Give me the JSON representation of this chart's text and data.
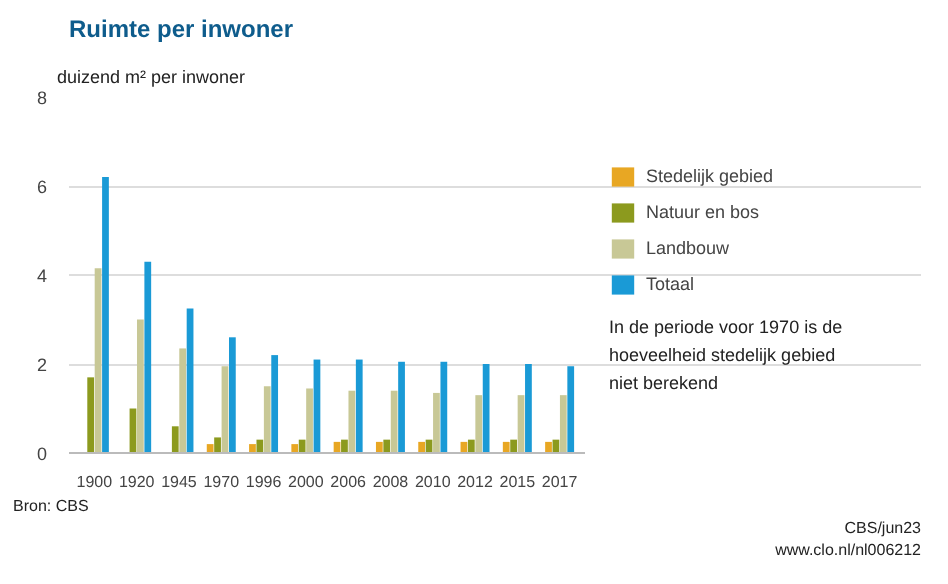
{
  "chart_data": {
    "type": "bar",
    "title": "Ruimte per inwoner",
    "ylabel": "duizend m² per inwoner",
    "categories": [
      "1900",
      "1920",
      "1945",
      "1970",
      "1996",
      "2000",
      "2006",
      "2008",
      "2010",
      "2012",
      "2015",
      "2017"
    ],
    "series": [
      {
        "name": "Stedelijk gebied",
        "color": "#e8a723",
        "values": [
          null,
          null,
          null,
          0.2,
          0.2,
          0.2,
          0.25,
          0.25,
          0.25,
          0.25,
          0.25,
          0.25
        ]
      },
      {
        "name": "Natuur en bos",
        "color": "#8c9a1e",
        "values": [
          1.7,
          1.0,
          0.6,
          0.35,
          0.3,
          0.3,
          0.3,
          0.3,
          0.3,
          0.3,
          0.3,
          0.3
        ]
      },
      {
        "name": "Landbouw",
        "color": "#c8c896",
        "values": [
          4.15,
          3.0,
          2.35,
          1.95,
          1.5,
          1.45,
          1.4,
          1.4,
          1.35,
          1.3,
          1.3,
          1.3
        ]
      },
      {
        "name": "Totaal",
        "color": "#1a9ad6",
        "values": [
          6.2,
          4.3,
          3.25,
          2.6,
          2.2,
          2.1,
          2.1,
          2.05,
          2.05,
          2.0,
          2.0,
          1.95
        ]
      }
    ],
    "ylim": [
      0,
      8
    ],
    "yticks": [
      0,
      2,
      4,
      6,
      8
    ],
    "grid": "y",
    "legend": "right",
    "annotations": [
      "In de periode voor 1970 is de hoeveelheid stedelijk gebied niet berekend",
      "Bron: CBS",
      "CBS/jun23",
      "www.clo.nl/nl006212"
    ]
  }
}
